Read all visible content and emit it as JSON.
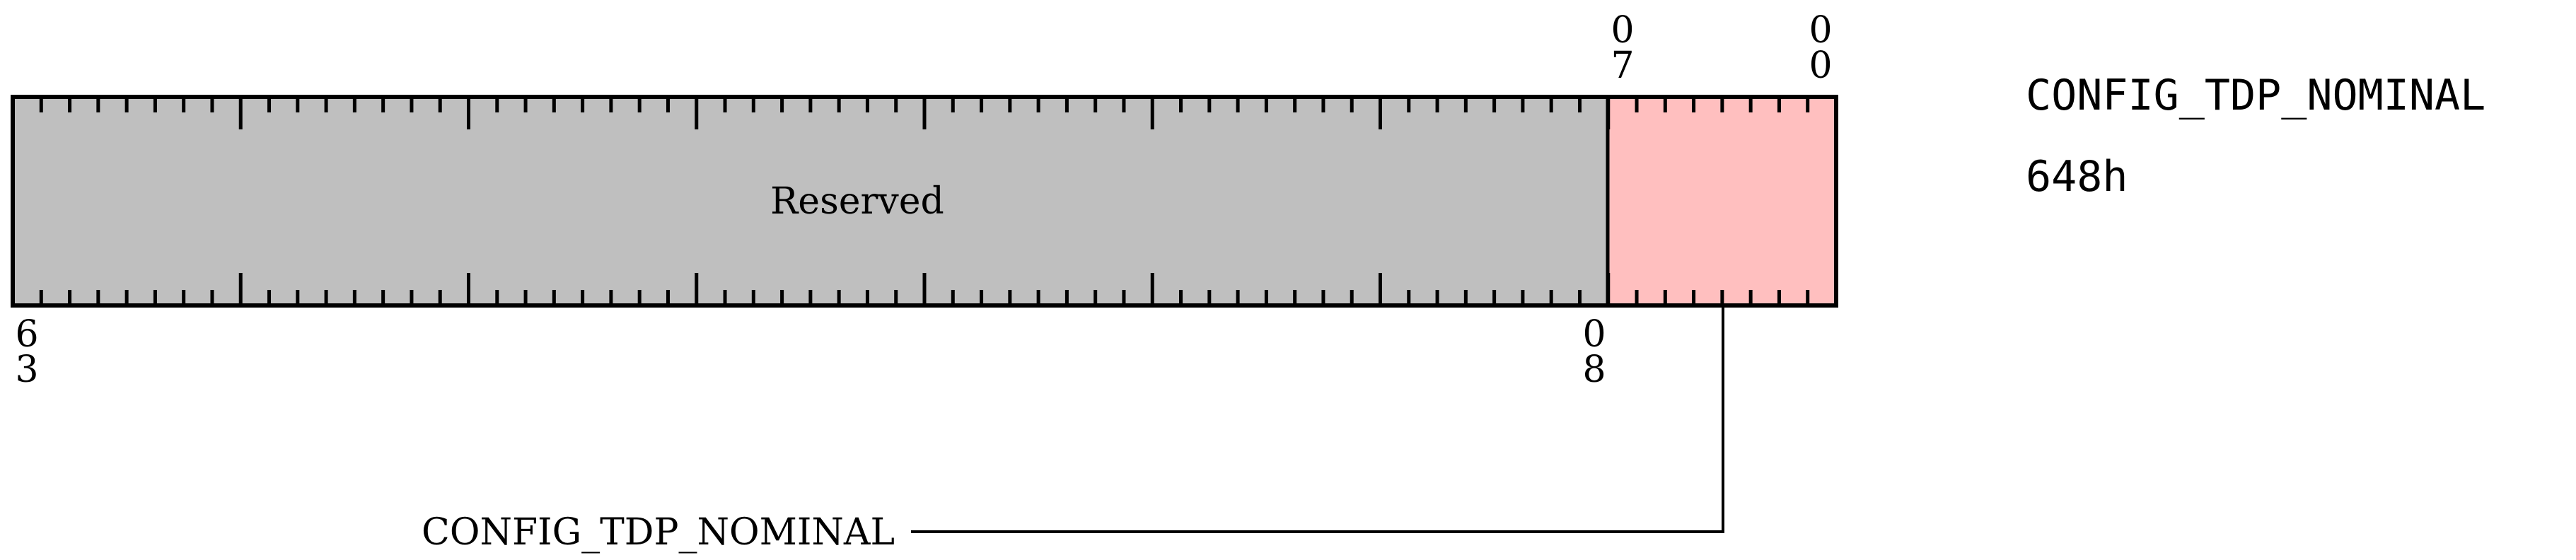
{
  "register": {
    "name": "CONFIG_TDP_NOMINAL",
    "address": "648h"
  },
  "fields": [
    {
      "name": "Reserved",
      "msb": 63,
      "lsb": 8,
      "color": "#bfbfbf",
      "label_inside": true
    },
    {
      "name": "CONFIG_TDP_NOMINAL",
      "msb": 7,
      "lsb": 0,
      "color": "#ffbfbf",
      "label_inside": false
    }
  ],
  "bit_labels": {
    "top_left_field_msb": [
      "0",
      "7"
    ],
    "top_lsb": [
      "0",
      "0"
    ],
    "bottom_msb": [
      "6",
      "3"
    ],
    "bottom_field_lsb": [
      "0",
      "8"
    ]
  },
  "callout_label": "CONFIG_TDP_NOMINAL",
  "total_bits": 64
}
